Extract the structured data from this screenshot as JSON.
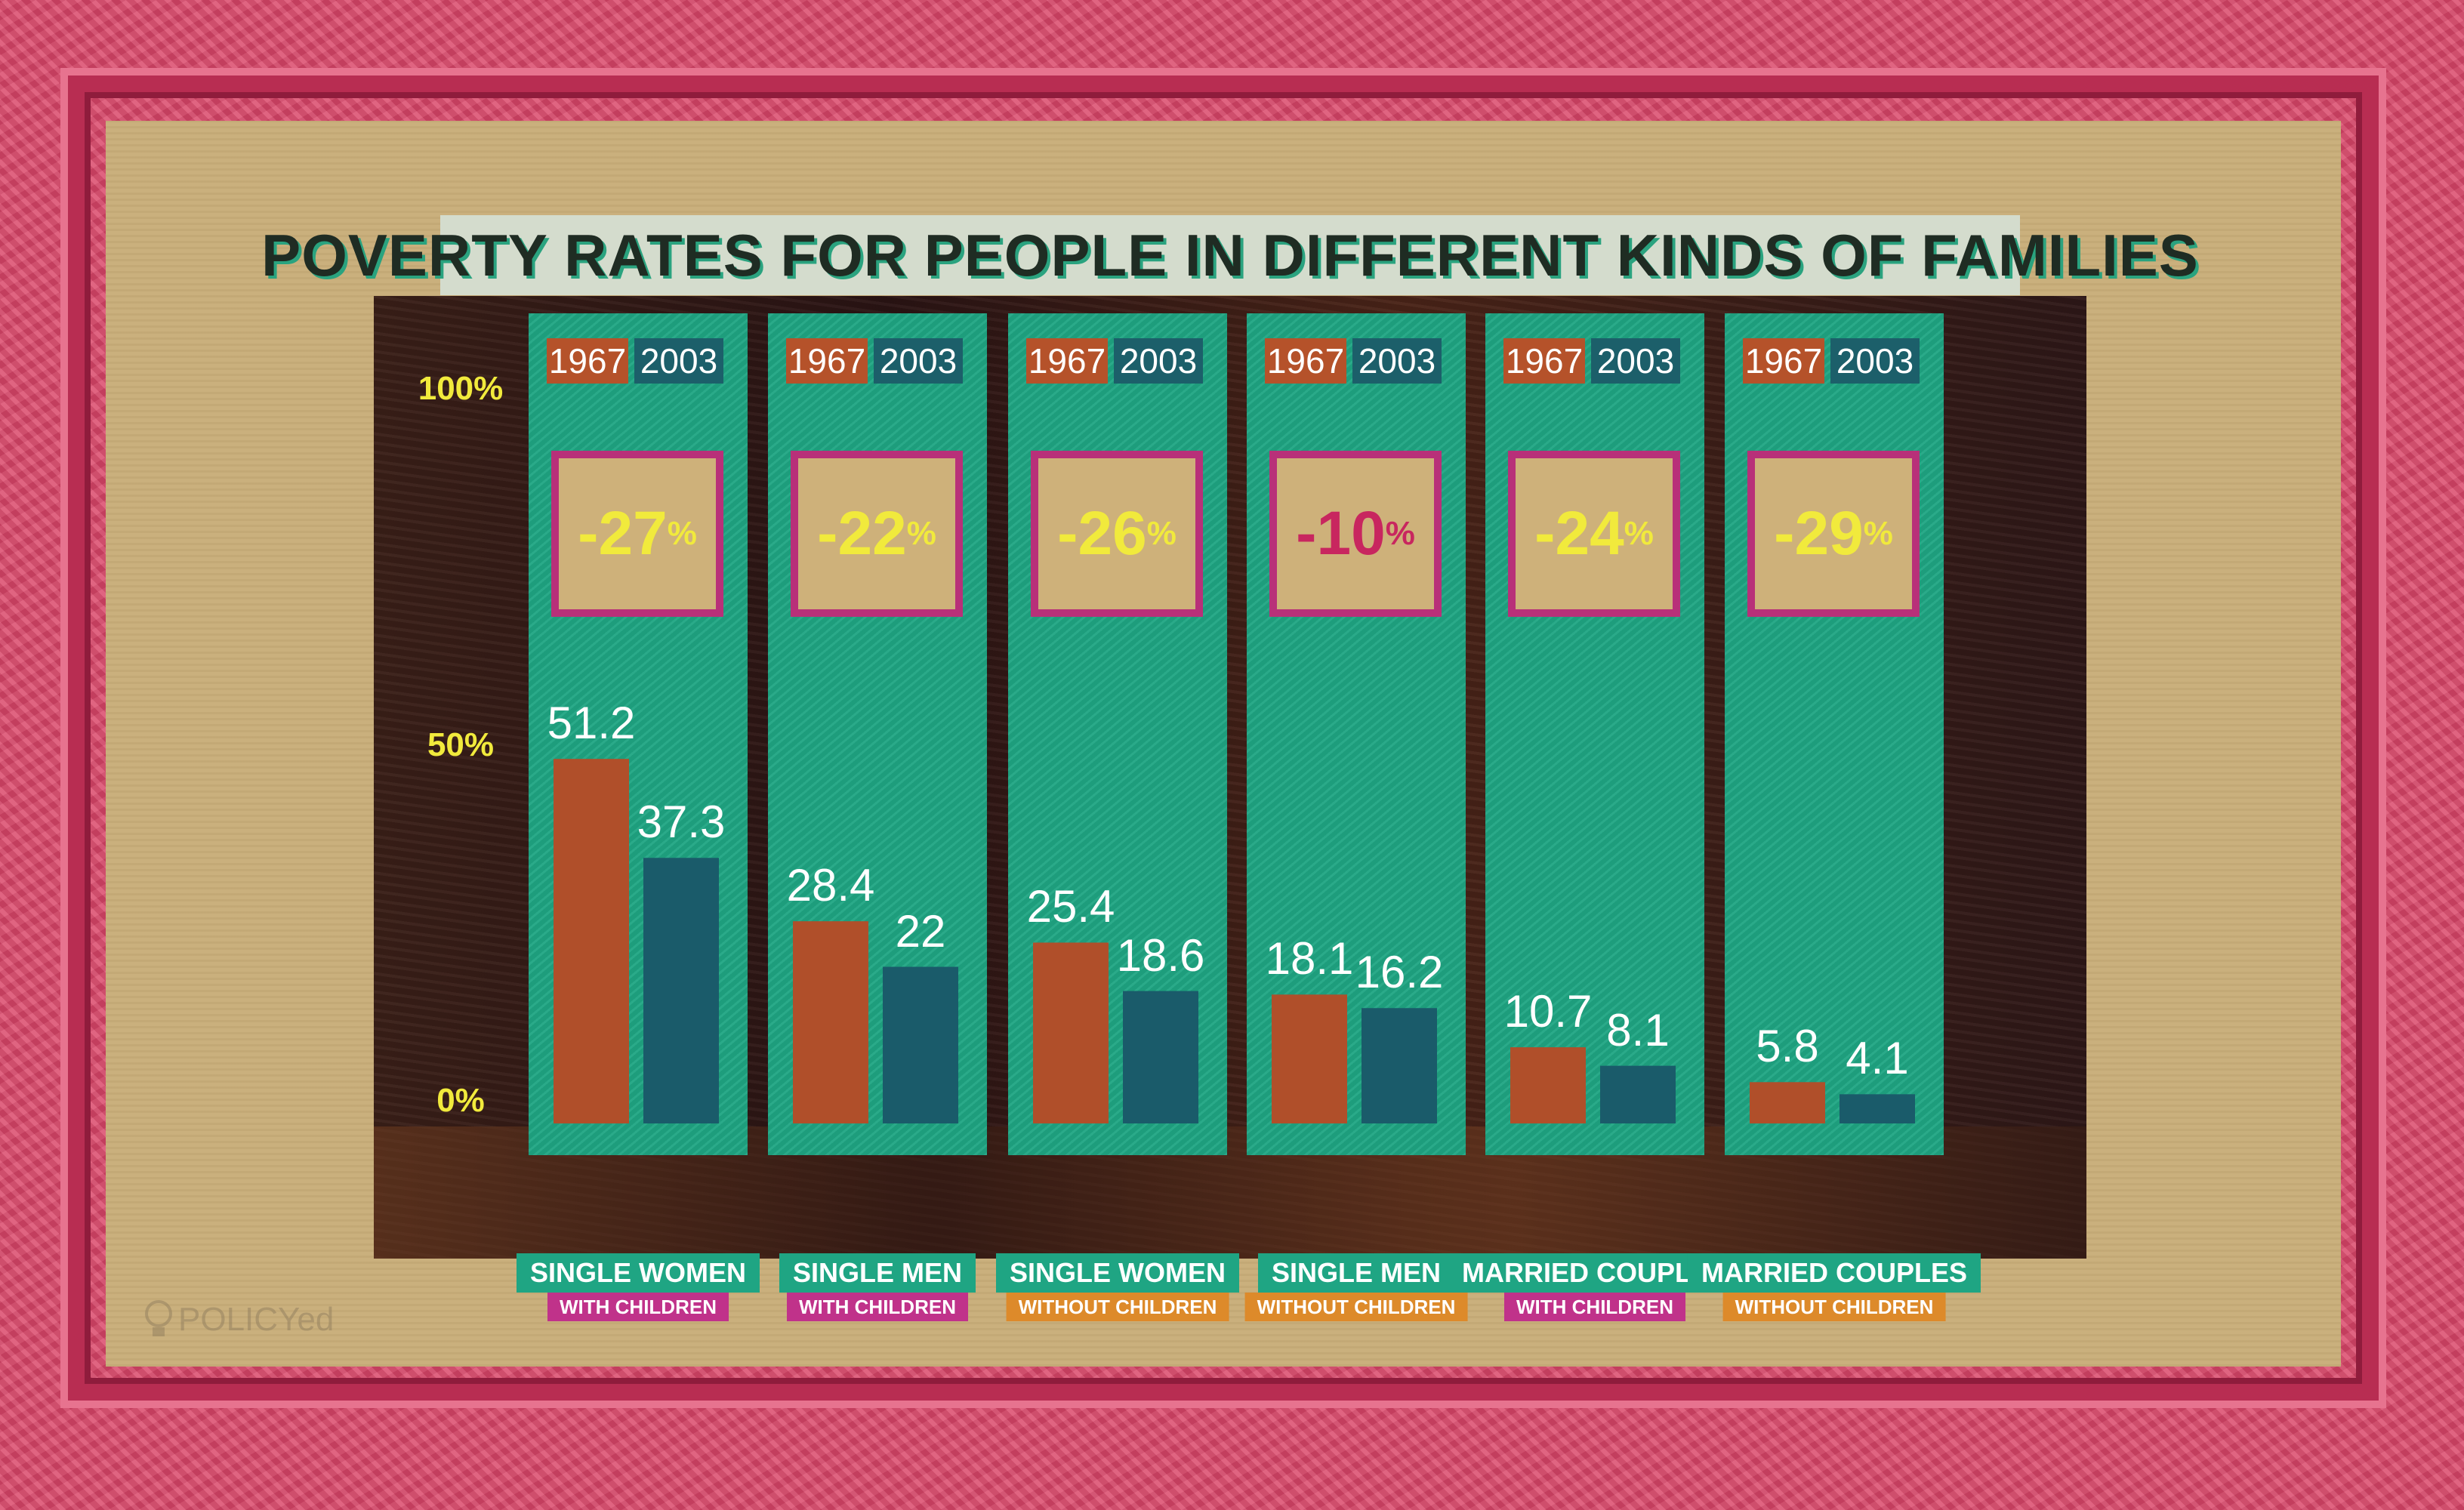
{
  "chart_data": {
    "type": "bar",
    "title": "POVERTY RATES FOR PEOPLE IN DIFFERENT KINDS OF FAMILIES",
    "y_ticks": [
      "100%",
      "50%",
      "0%"
    ],
    "ylim": [
      0,
      100
    ],
    "series_names": [
      "1967",
      "2003"
    ],
    "groups": [
      {
        "name": "SINGLE WOMEN",
        "sub": "WITH CHILDREN",
        "sub_color": "#c0328a",
        "change": "-27",
        "change_color": "#f1ea3c",
        "values": [
          51.2,
          37.3
        ],
        "labels": [
          "51.2",
          "37.3"
        ]
      },
      {
        "name": "SINGLE MEN",
        "sub": "WITH CHILDREN",
        "sub_color": "#c0328a",
        "change": "-22",
        "change_color": "#f1ea3c",
        "values": [
          28.4,
          22
        ],
        "labels": [
          "28.4",
          "22"
        ]
      },
      {
        "name": "SINGLE WOMEN",
        "sub": "WITHOUT CHILDREN",
        "sub_color": "#dd8a2a",
        "change": "-26",
        "change_color": "#f1ea3c",
        "values": [
          25.4,
          18.6
        ],
        "labels": [
          "25.4",
          "18.6"
        ]
      },
      {
        "name": "SINGLE MEN",
        "sub": "WITHOUT CHILDREN",
        "sub_color": "#dd8a2a",
        "change": "-10",
        "change_color": "#c8265f",
        "values": [
          18.1,
          16.2
        ],
        "labels": [
          "18.1",
          "16.2"
        ]
      },
      {
        "name": "MARRIED COUPLES",
        "sub": "WITH CHILDREN",
        "sub_color": "#c0328a",
        "change": "-24",
        "change_color": "#f1ea3c",
        "values": [
          10.7,
          8.1
        ],
        "labels": [
          "10.7",
          "8.1"
        ]
      },
      {
        "name": "MARRIED COUPLES",
        "sub": "WITHOUT CHILDREN",
        "sub_color": "#dd8a2a",
        "change": "-29",
        "change_color": "#f1ea3c",
        "values": [
          5.8,
          4.1
        ],
        "labels": [
          "5.8",
          "4.1"
        ]
      }
    ],
    "pct_symbol": "%"
  },
  "logo": {
    "text": "POLICYed"
  },
  "colors": {
    "panel": "#1fa583",
    "bar_1967": "#b04f2a",
    "bar_2003": "#1a5b6a",
    "frame": "#d94a6c"
  }
}
